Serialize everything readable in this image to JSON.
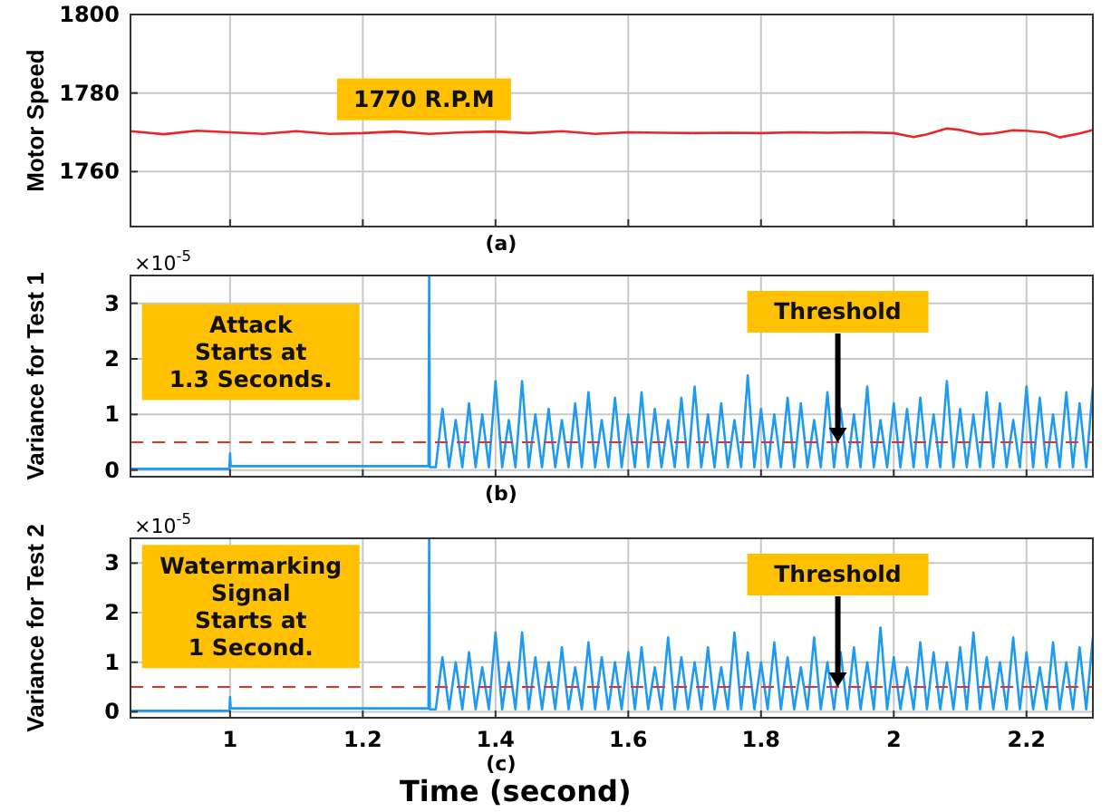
{
  "chart_data": [
    {
      "type": "line",
      "ylabel": "Motor Speed",
      "subtitle": "(a)",
      "xlim": [
        0.85,
        2.3
      ],
      "ylim": [
        1746,
        1800
      ],
      "xticks": [
        1,
        1.2,
        1.4,
        1.6,
        1.8,
        2,
        2.2
      ],
      "yticks": [
        1760,
        1780,
        1800
      ],
      "grid": true,
      "tick_labels": "y",
      "annotations": [
        "1770 R.P.M"
      ],
      "series": [
        {
          "color": "#e8262a",
          "x": [
            0.85,
            0.9,
            0.95,
            1,
            1.05,
            1.1,
            1.15,
            1.2,
            1.25,
            1.3,
            1.35,
            1.4,
            1.45,
            1.5,
            1.55,
            1.6,
            1.65,
            1.7,
            1.75,
            1.8,
            1.85,
            1.9,
            1.95,
            2,
            2.03,
            2.05,
            2.08,
            2.1,
            2.13,
            2.15,
            2.18,
            2.2,
            2.23,
            2.25,
            2.28,
            2.3
          ],
          "values": [
            1770.3,
            1769.5,
            1770.4,
            1770.0,
            1769.6,
            1770.3,
            1769.6,
            1769.8,
            1770.2,
            1769.6,
            1770.0,
            1770.2,
            1769.8,
            1770.3,
            1769.6,
            1770.0,
            1769.9,
            1769.8,
            1769.9,
            1769.8,
            1770.0,
            1769.9,
            1770.0,
            1769.8,
            1768.8,
            1769.5,
            1771.0,
            1770.6,
            1769.5,
            1769.7,
            1770.5,
            1770.4,
            1769.9,
            1768.7,
            1769.7,
            1770.6
          ]
        }
      ]
    },
    {
      "type": "line",
      "ylabel": "Variance for Test 1",
      "subtitle": "(b)",
      "xlim": [
        0.85,
        2.3
      ],
      "ylim": [
        -0.12,
        3.5
      ],
      "xticks": [
        1,
        1.2,
        1.4,
        1.6,
        1.8,
        2,
        2.2
      ],
      "yticks": [
        0,
        1,
        2,
        3
      ],
      "grid": true,
      "tick_labels": "y",
      "annotations": [
        "×10$^{-5}$",
        "Attack\nStarts at\n1.3 Seconds."
      ],
      "ref_lines": [
        {
          "axis": "y",
          "value": 0.5,
          "label": "Threshold",
          "color": "#e03030",
          "line_style": "dashed"
        }
      ],
      "series": [
        {
          "color": "#1e9bf0",
          "x": [
            0.85,
            0.999,
            1.0,
            1.001,
            1.299,
            1.3,
            1.301,
            1.31,
            1.32,
            1.33,
            1.34,
            1.35,
            1.36,
            1.37,
            1.38,
            1.39,
            1.4,
            1.41,
            1.42,
            1.43,
            1.44,
            1.45,
            1.46,
            1.47,
            1.48,
            1.49,
            1.5,
            1.51,
            1.52,
            1.53,
            1.54,
            1.55,
            1.56,
            1.57,
            1.58,
            1.59,
            1.6,
            1.61,
            1.62,
            1.63,
            1.64,
            1.65,
            1.66,
            1.67,
            1.68,
            1.69,
            1.7,
            1.71,
            1.72,
            1.73,
            1.74,
            1.75,
            1.76,
            1.77,
            1.78,
            1.79,
            1.8,
            1.81,
            1.82,
            1.83,
            1.84,
            1.85,
            1.86,
            1.87,
            1.88,
            1.89,
            1.9,
            1.91,
            1.92,
            1.93,
            1.94,
            1.95,
            1.96,
            1.97,
            1.98,
            1.99,
            2,
            2.01,
            2.02,
            2.03,
            2.04,
            2.05,
            2.06,
            2.07,
            2.08,
            2.09,
            2.1,
            2.11,
            2.12,
            2.13,
            2.14,
            2.15,
            2.16,
            2.17,
            2.18,
            2.19,
            2.2,
            2.21,
            2.22,
            2.23,
            2.24,
            2.25,
            2.26,
            2.27,
            2.28,
            2.29,
            2.3
          ],
          "values": [
            0.02,
            0.02,
            0.3,
            0.07,
            0.07,
            3.5,
            0.05,
            0.05,
            1.1,
            0.05,
            0.9,
            0.05,
            1.2,
            0.05,
            1.0,
            0.05,
            1.6,
            0.05,
            0.9,
            0.05,
            1.6,
            0.05,
            1.0,
            0.05,
            1.1,
            0.05,
            0.9,
            0.05,
            1.2,
            0.05,
            1.4,
            0.05,
            0.9,
            0.05,
            1.3,
            0.05,
            1.0,
            0.05,
            1.4,
            0.05,
            1.1,
            0.05,
            0.9,
            0.05,
            1.3,
            0.05,
            1.5,
            0.05,
            1.0,
            0.05,
            1.2,
            0.05,
            0.9,
            0.05,
            1.7,
            0.05,
            1.1,
            0.05,
            1.0,
            0.05,
            1.3,
            0.05,
            1.2,
            0.05,
            0.9,
            0.05,
            1.4,
            0.05,
            1.1,
            0.05,
            1.0,
            0.05,
            1.5,
            0.05,
            0.9,
            0.05,
            1.2,
            0.05,
            1.1,
            0.05,
            1.3,
            0.05,
            1.0,
            0.05,
            1.6,
            0.05,
            1.1,
            0.05,
            1.0,
            0.05,
            1.4,
            0.05,
            1.2,
            0.05,
            0.9,
            0.05,
            1.5,
            0.05,
            1.3,
            0.05,
            1.0,
            0.05,
            1.4,
            0.05,
            1.2,
            0.05,
            1.5
          ]
        }
      ]
    },
    {
      "type": "line",
      "ylabel": "Variance for Test 2",
      "subtitle": "(c)",
      "xlabel": "Time (second)",
      "xlim": [
        0.85,
        2.3
      ],
      "ylim": [
        -0.12,
        3.5
      ],
      "xticks": [
        1,
        1.2,
        1.4,
        1.6,
        1.8,
        2,
        2.2
      ],
      "yticks": [
        0,
        1,
        2,
        3
      ],
      "grid": true,
      "annotations": [
        "×10$^{-5}$",
        "Watermarking\nSignal\nStarts at\n1 Second."
      ],
      "ref_lines": [
        {
          "axis": "y",
          "value": 0.5,
          "label": "Threshold",
          "color": "#e03030",
          "line_style": "dashed"
        }
      ],
      "series": [
        {
          "color": "#1e9bf0",
          "x": [
            0.85,
            0.999,
            1.0,
            1.001,
            1.299,
            1.3,
            1.301,
            1.31,
            1.32,
            1.33,
            1.34,
            1.35,
            1.36,
            1.37,
            1.38,
            1.39,
            1.4,
            1.41,
            1.42,
            1.43,
            1.44,
            1.45,
            1.46,
            1.47,
            1.48,
            1.49,
            1.5,
            1.51,
            1.52,
            1.53,
            1.54,
            1.55,
            1.56,
            1.57,
            1.58,
            1.59,
            1.6,
            1.61,
            1.62,
            1.63,
            1.64,
            1.65,
            1.66,
            1.67,
            1.68,
            1.69,
            1.7,
            1.71,
            1.72,
            1.73,
            1.74,
            1.75,
            1.76,
            1.77,
            1.78,
            1.79,
            1.8,
            1.81,
            1.82,
            1.83,
            1.84,
            1.85,
            1.86,
            1.87,
            1.88,
            1.89,
            1.9,
            1.91,
            1.92,
            1.93,
            1.94,
            1.95,
            1.96,
            1.97,
            1.98,
            1.99,
            2,
            2.01,
            2.02,
            2.03,
            2.04,
            2.05,
            2.06,
            2.07,
            2.08,
            2.09,
            2.1,
            2.11,
            2.12,
            2.13,
            2.14,
            2.15,
            2.16,
            2.17,
            2.18,
            2.19,
            2.2,
            2.21,
            2.22,
            2.23,
            2.24,
            2.25,
            2.26,
            2.27,
            2.28,
            2.29,
            2.3
          ],
          "values": [
            0.02,
            0.02,
            0.3,
            0.07,
            0.07,
            3.5,
            0.05,
            0.05,
            1.1,
            0.05,
            1.0,
            0.05,
            1.2,
            0.05,
            0.9,
            0.05,
            1.6,
            0.05,
            1.0,
            0.05,
            1.6,
            0.05,
            1.1,
            0.05,
            1.0,
            0.05,
            1.3,
            0.05,
            0.9,
            0.05,
            1.4,
            0.05,
            1.1,
            0.05,
            1.0,
            0.05,
            1.2,
            0.05,
            1.3,
            0.05,
            0.9,
            0.05,
            1.5,
            0.05,
            1.1,
            0.05,
            1.0,
            0.05,
            1.3,
            0.05,
            0.9,
            0.05,
            1.6,
            0.05,
            1.2,
            0.05,
            1.0,
            0.05,
            1.4,
            0.05,
            1.1,
            0.05,
            0.9,
            0.05,
            1.5,
            0.05,
            1.0,
            0.05,
            1.2,
            0.05,
            1.3,
            0.05,
            1.0,
            0.05,
            1.7,
            0.05,
            1.1,
            0.05,
            0.9,
            0.05,
            1.4,
            0.05,
            1.2,
            0.05,
            1.0,
            0.05,
            1.3,
            0.05,
            1.6,
            0.05,
            1.1,
            0.05,
            1.0,
            0.05,
            1.5,
            0.05,
            1.2,
            0.05,
            0.9,
            0.05,
            1.4,
            0.05,
            1.0,
            0.05,
            1.3,
            0.05,
            1.5
          ]
        }
      ]
    }
  ]
}
